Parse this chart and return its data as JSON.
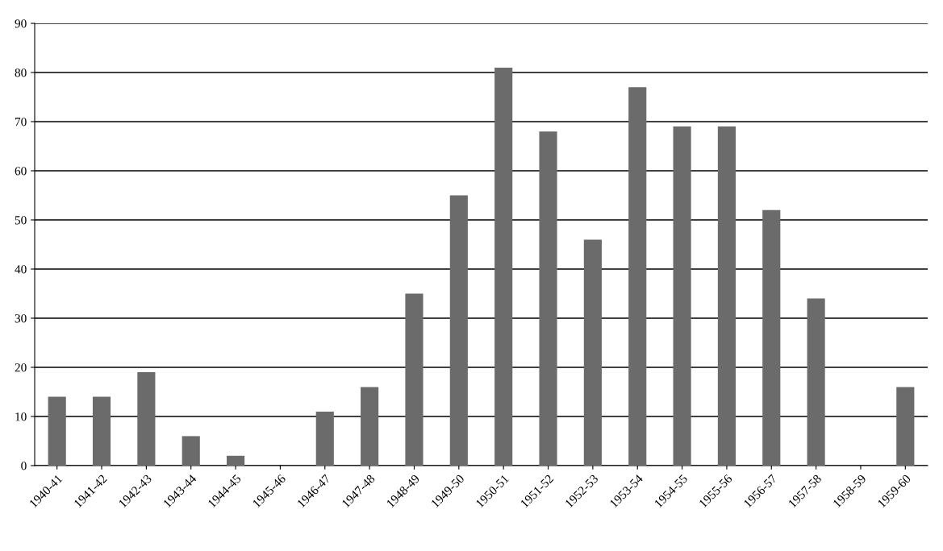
{
  "chart_data": {
    "type": "bar",
    "categories": [
      "1940-41",
      "1941-42",
      "1942-43",
      "1943-44",
      "1944-45",
      "1945-46",
      "1946-47",
      "1947-48",
      "1948-49",
      "1949-50",
      "1950-51",
      "1951-52",
      "1952-53",
      "1953-54",
      "1954-55",
      "1955-56",
      "1956-57",
      "1957-58",
      "1958-59",
      "1959-60"
    ],
    "values": [
      14,
      14,
      19,
      6,
      2,
      0,
      11,
      16,
      35,
      55,
      81,
      68,
      46,
      77,
      69,
      69,
      52,
      34,
      0,
      16
    ],
    "color": "#6b6b6b",
    "ylim": [
      0,
      90
    ],
    "yticks": [
      0,
      10,
      20,
      30,
      40,
      50,
      60,
      70,
      80,
      90
    ],
    "grid": "y",
    "legend": false
  }
}
